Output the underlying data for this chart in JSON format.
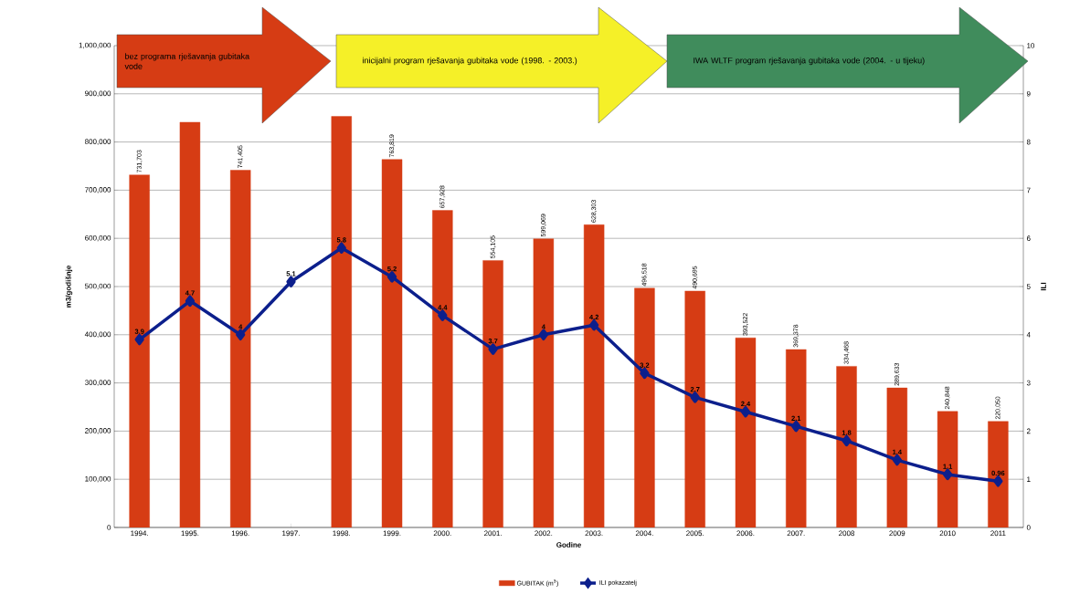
{
  "chart_data": {
    "type": "bar",
    "xlabel": "Godine",
    "ylabel": "m3/godišnje",
    "y2label": "ILI",
    "categories": [
      "1994.",
      "1995.",
      "1996.",
      "1997.",
      "1998.",
      "1999.",
      "2000.",
      "2001.",
      "2002.",
      "2003.",
      "2004.",
      "2005.",
      "2006.",
      "2007.",
      "2008",
      "2009",
      "2010",
      "2011"
    ],
    "series": [
      {
        "name": "GUBITAK (m$^{3}$)",
        "color": "#d63c14",
        "values": [
          731703,
          841000,
          741405,
          null,
          853000,
          763819,
          657928,
          554105,
          599069,
          628303,
          496518,
          490695,
          393522,
          369378,
          334468,
          289633,
          240848,
          220050
        ],
        "value_labels": [
          "731,703",
          null,
          "741,405",
          null,
          null,
          "763,819",
          "657,928",
          "554,105",
          "599,069",
          "628,303",
          "496,518",
          "490,695",
          "393,522",
          "369,378",
          "334,468",
          "289,633",
          "240,848",
          "220,050"
        ]
      },
      {
        "name": "ILI pokazatelj",
        "type": "line",
        "axis": "y2",
        "color": "#0c1f8c",
        "values": [
          3.9,
          4.7,
          4,
          5.1,
          5.8,
          5.2,
          4.4,
          3.7,
          4,
          4.2,
          3.2,
          2.7,
          2.4,
          2.1,
          1.8,
          1.4,
          1.1,
          0.96
        ],
        "value_labels": [
          "3.9",
          "4.7",
          "4",
          "5.1",
          "5.8",
          "5.2",
          "4.4",
          "3.7",
          "4",
          "4.2",
          "3.2",
          "2.7",
          "2.4",
          "2.1",
          "1.8",
          "1.4",
          "1.1",
          "0.96"
        ]
      }
    ],
    "ylim": [
      0,
      1000000
    ],
    "yticks": [
      0,
      {
        "value": 100000,
        "label": "100,000"
      },
      {
        "value": 200000,
        "label": "200,000"
      },
      {
        "value": 300000,
        "label": "300,000"
      },
      {
        "value": 400000,
        "label": "400,000"
      },
      {
        "value": 500000,
        "label": "500,000"
      },
      {
        "value": 600000,
        "label": "600,000"
      },
      {
        "value": 700000,
        "label": "700,000"
      },
      {
        "value": 800000,
        "label": "800,000"
      },
      {
        "value": 900000,
        "label": "900,000"
      },
      {
        "value": 1000000,
        "label": "1,000,000"
      }
    ],
    "y2lim": [
      0,
      10
    ],
    "y2ticks": [
      0,
      1,
      2,
      3,
      4,
      5,
      6,
      7,
      8,
      9,
      10
    ],
    "grid": "y",
    "legend": "bottom",
    "marker": "diamond",
    "line_style": "solid",
    "annotations": [
      "bez programa rješavanja gubitaka vode",
      "inicijalni program rješavanja gubitaka vode (1998. - 2003.)",
      "IWA WLTF program rješavanja gubitaka vode (2004. - u tijeku)"
    ]
  }
}
